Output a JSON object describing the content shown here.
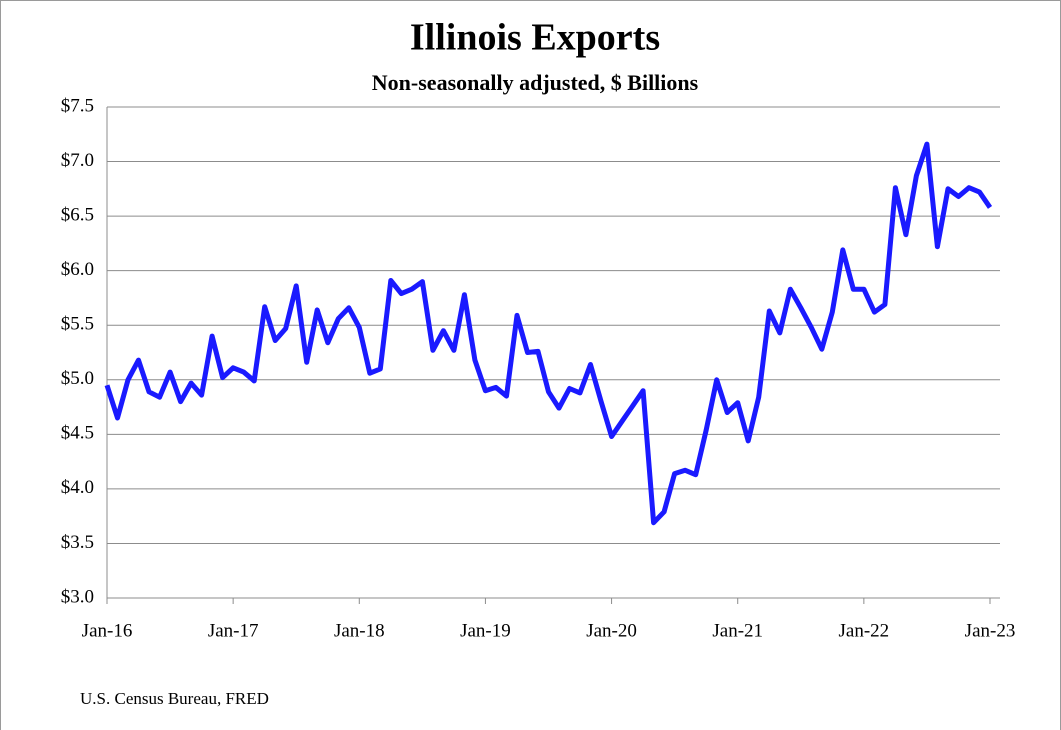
{
  "chart_data": {
    "type": "line",
    "title": "Illinois Exports",
    "subtitle": "Non-seasonally adjusted, $ Billions",
    "source": "U.S. Census Bureau, FRED",
    "categories": [
      "Jan-16",
      null,
      null,
      null,
      null,
      null,
      null,
      null,
      null,
      null,
      null,
      null,
      "Jan-17",
      null,
      null,
      null,
      null,
      null,
      null,
      null,
      null,
      null,
      null,
      null,
      "Jan-18",
      null,
      null,
      null,
      null,
      null,
      null,
      null,
      null,
      null,
      null,
      null,
      "Jan-19",
      null,
      null,
      null,
      null,
      null,
      null,
      null,
      null,
      null,
      null,
      null,
      "Jan-20",
      null,
      null,
      null,
      null,
      null,
      null,
      null,
      null,
      null,
      null,
      null,
      "Jan-21",
      null,
      null,
      null,
      null,
      null,
      null,
      null,
      null,
      null,
      null,
      null,
      "Jan-22",
      null,
      null,
      null,
      null,
      null,
      null,
      null,
      null,
      null,
      null,
      null,
      "Jan-23"
    ],
    "series": [
      {
        "name": "Illinois Exports",
        "color": "#1a1aff",
        "values": [
          4.95,
          4.65,
          5.0,
          5.18,
          4.89,
          4.84,
          5.07,
          4.8,
          4.97,
          4.86,
          5.4,
          5.02,
          5.11,
          5.07,
          4.99,
          5.67,
          5.36,
          5.47,
          5.86,
          5.16,
          5.64,
          5.34,
          5.56,
          5.66,
          5.48,
          5.06,
          5.1,
          5.91,
          5.79,
          5.83,
          5.9,
          5.27,
          5.45,
          5.27,
          5.78,
          5.18,
          4.9,
          4.93,
          4.85,
          5.59,
          5.25,
          5.26,
          4.89,
          4.74,
          4.92,
          4.88,
          5.14,
          4.8,
          4.48,
          4.62,
          4.76,
          4.9,
          3.69,
          3.79,
          4.14,
          4.17,
          4.13,
          4.54,
          5.0,
          4.7,
          4.79,
          4.44,
          4.84,
          5.63,
          5.43,
          5.83,
          5.66,
          5.48,
          5.28,
          5.62,
          6.19,
          5.83,
          5.83,
          5.62,
          5.69,
          6.76,
          6.33,
          6.87,
          7.16,
          6.22,
          6.75,
          6.68,
          6.76,
          6.72,
          6.58
        ]
      }
    ],
    "ylim": [
      3,
      7.5
    ],
    "yticks": [
      {
        "value": 3,
        "label": "$3.0"
      },
      {
        "value": 3.5,
        "label": "$3.5"
      },
      {
        "value": 4,
        "label": "$4.0"
      },
      {
        "value": 4.5,
        "label": "$4.5"
      },
      {
        "value": 5,
        "label": "$5.0"
      },
      {
        "value": 5.5,
        "label": "$5.5"
      },
      {
        "value": 6,
        "label": "$6.0"
      },
      {
        "value": 6.5,
        "label": "$6.5"
      },
      {
        "value": 7,
        "label": "$7.0"
      },
      {
        "value": 7.5,
        "label": "$7.5"
      }
    ],
    "grid": true
  }
}
